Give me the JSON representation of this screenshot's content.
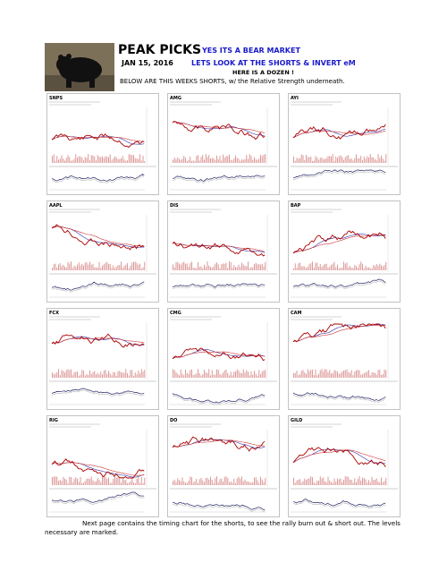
{
  "header": {
    "title": "PEAK PICKS",
    "date": "JAN 15, 2016",
    "headline_1": "YES ITS A BEAR MARKET",
    "headline_2": "LETS LOOK AT THE SHORTS & INVERT eM",
    "headline_3": "HERE IS A DOZEN !",
    "subtitle": "BELOW ARE THIS WEEKS SHORTS, w/ the Relative Strength underneath."
  },
  "charts": [
    {
      "ticker": "SNPS"
    },
    {
      "ticker": "AMG"
    },
    {
      "ticker": "AYI"
    },
    {
      "ticker": "AAPL"
    },
    {
      "ticker": "DIS"
    },
    {
      "ticker": "BAP"
    },
    {
      "ticker": "FCX"
    },
    {
      "ticker": "CMG"
    },
    {
      "ticker": "CAM"
    },
    {
      "ticker": "RIG"
    },
    {
      "ticker": "DO"
    },
    {
      "ticker": "GILD"
    }
  ],
  "footer": {
    "text": "Next page contains the timing chart for the shorts, to see the rally burn out & short out.  The levels necessary are marked."
  }
}
